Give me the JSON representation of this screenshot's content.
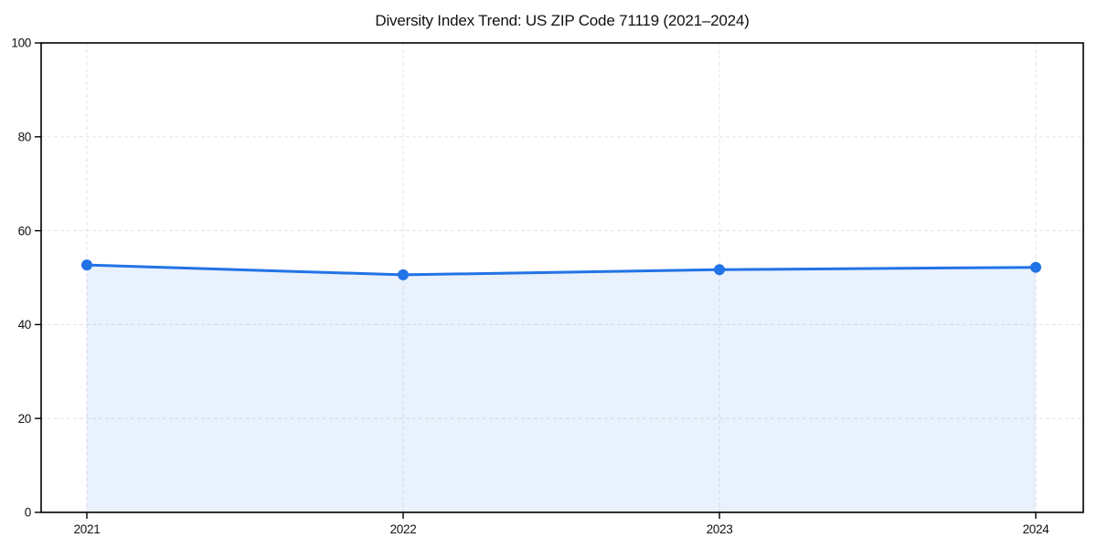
{
  "chart_data": {
    "type": "area",
    "title": "Diversity Index Trend: US ZIP Code 71119 (2021–2024)",
    "x": [
      2021,
      2022,
      2023,
      2024
    ],
    "series": [
      {
        "name": "Diversity Index",
        "values": [
          52.7,
          50.6,
          51.7,
          52.2
        ]
      }
    ],
    "xlabel": "",
    "ylabel": "",
    "ylim": [
      0,
      100
    ],
    "yticks": [
      0,
      20,
      40,
      60,
      80,
      100
    ],
    "xticks": [
      "2021",
      "2022",
      "2023",
      "2024"
    ],
    "grid": "dashed-both",
    "legend": "none",
    "marker": "circle",
    "colors": {
      "line": "#2273e6",
      "marker": "#2273e6",
      "fill": "#2273e6",
      "fill_opacity": 0.1,
      "grid": "#e3e3e3",
      "axis": "#000000",
      "text": "#111111",
      "background": "#ffffff"
    }
  }
}
